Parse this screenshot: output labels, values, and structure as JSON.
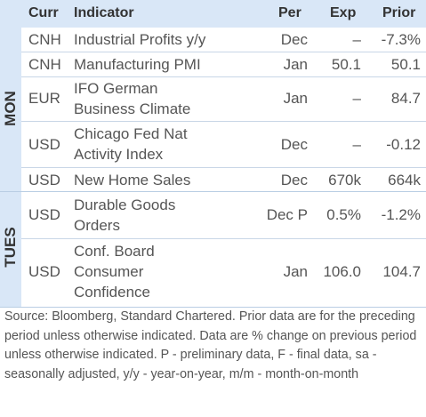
{
  "header": {
    "curr": "Curr",
    "indicator": "Indicator",
    "per": "Per",
    "exp": "Exp",
    "prior": "Prior"
  },
  "days": {
    "mon": "MON",
    "tues": "TUES"
  },
  "rows": [
    {
      "curr": "CNH",
      "indicator": [
        "Industrial Profits y/y"
      ],
      "per": "Dec",
      "exp": "–",
      "prior": "-7.3%"
    },
    {
      "curr": "CNH",
      "indicator": [
        "Manufacturing PMI"
      ],
      "per": "Jan",
      "exp": "50.1",
      "prior": "50.1"
    },
    {
      "curr": "EUR",
      "indicator": [
        "IFO German",
        "Business Climate"
      ],
      "per": "Jan",
      "exp": "–",
      "prior": "84.7"
    },
    {
      "curr": "USD",
      "indicator": [
        "Chicago Fed Nat",
        "Activity Index"
      ],
      "per": "Dec",
      "exp": "–",
      "prior": "-0.12"
    },
    {
      "curr": "USD",
      "indicator": [
        "New Home Sales"
      ],
      "per": "Dec",
      "exp": "670k",
      "prior": "664k"
    },
    {
      "curr": "USD",
      "indicator": [
        "Durable Goods",
        "Orders"
      ],
      "per": "Dec P",
      "exp": "0.5%",
      "prior": "-1.2%"
    },
    {
      "curr": "USD",
      "indicator": [
        "Conf. Board",
        "Consumer",
        "Confidence"
      ],
      "per": "Jan",
      "exp": "106.0",
      "prior": "104.7"
    }
  ],
  "footnote": "Source: Bloomberg, Standard Chartered. Prior data are for the preceding period unless otherwise indicated. Data are % change on previous period unless otherwise indicated. P - preliminary data, F - final data, sa - seasonally adjusted, y/y - year-on-year, m/m - month-on-month"
}
